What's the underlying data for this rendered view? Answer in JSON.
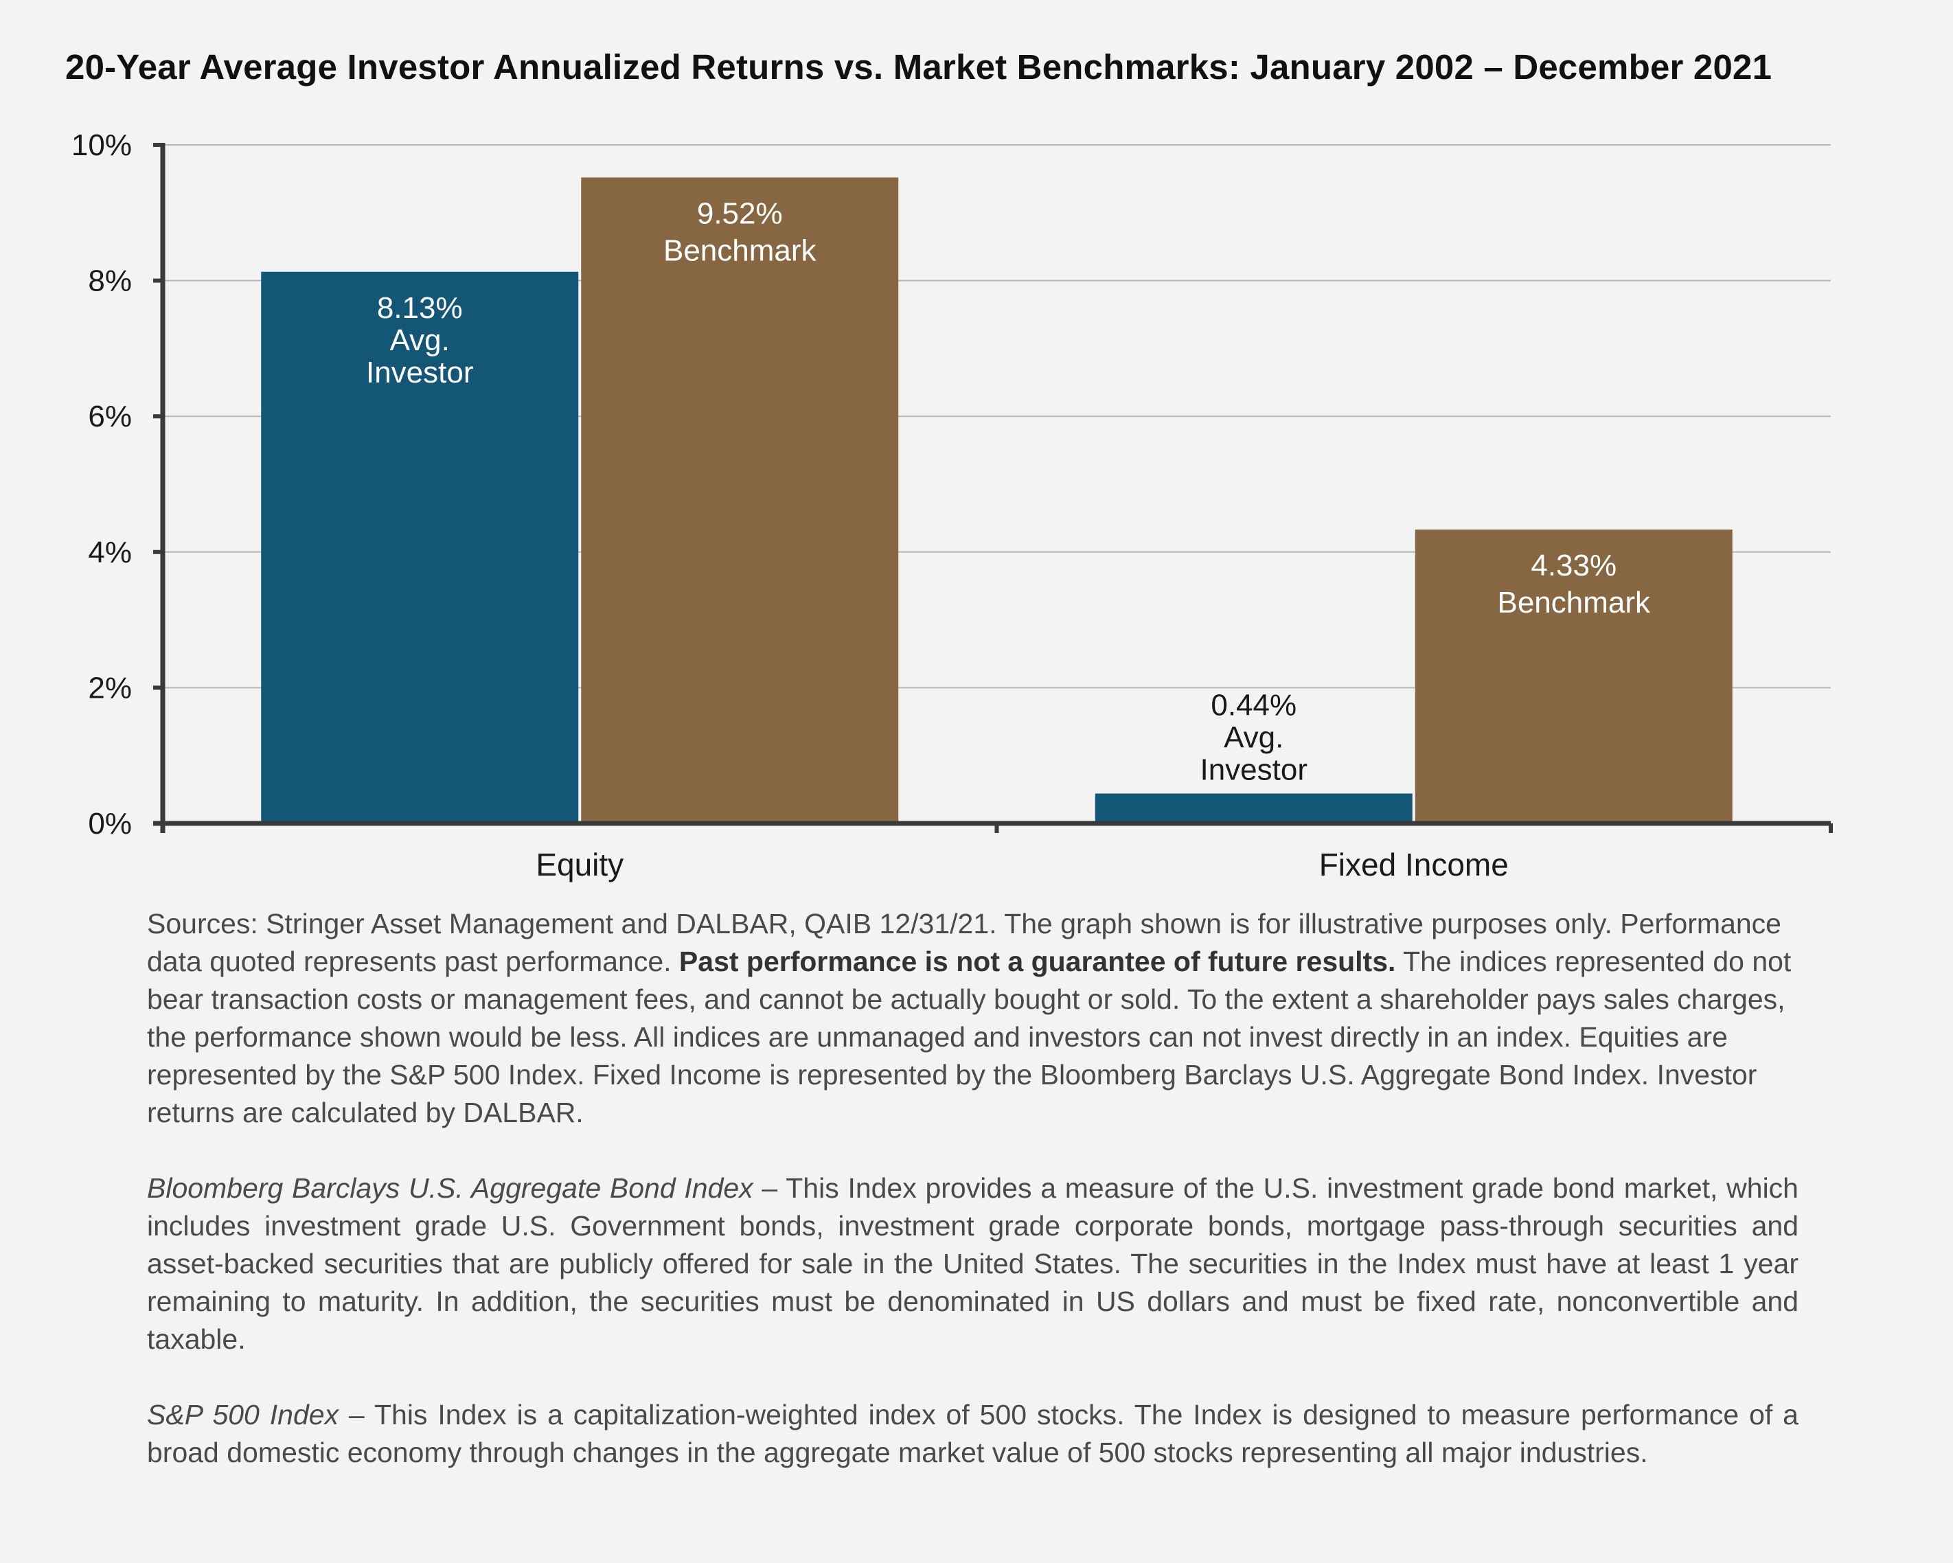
{
  "chart_data": {
    "type": "bar",
    "title": "20-Year Average Investor Annualized Returns vs. Market Benchmarks: January 2002 – December 2021",
    "categories": [
      "Equity",
      "Fixed Income"
    ],
    "series": [
      {
        "values": [
          8.13,
          0.44
        ],
        "labels": [
          "8.13%\nAvg.\nInvestor",
          "0.44%\nAvg.\nInvestor"
        ],
        "color": "#135676"
      },
      {
        "values": [
          9.52,
          4.33
        ],
        "labels": [
          "9.52%\nBenchmark",
          "4.33%\nBenchmark"
        ],
        "color": "#866741"
      }
    ],
    "yticks": [
      "0%",
      "2%",
      "4%",
      "6%",
      "8%",
      "10%"
    ],
    "ylim": [
      0,
      10
    ],
    "grid": true
  },
  "notes": {
    "p1": {
      "a": "Sources: Stringer Asset Management and DALBAR, QAIB 12/31/21. The graph shown is for illustrative purposes only. Performance data quoted represents past performance. ",
      "bold": "Past performance is not a guarantee of future results.",
      "b": " The indices represented do not bear transaction costs or management fees, and cannot be actually bought or sold. To the extent a shareholder pays sales charges, the performance shown would be less. All indices are unmanaged and investors can not invest directly in an index. Equities are represented by the S&P 500 Index. Fixed Income is represented by the Bloomberg Barclays U.S. Aggregate Bond Index. Investor returns are calculated by DALBAR."
    },
    "p2": {
      "term": "Bloomberg Barclays U.S. Aggregate Bond Index",
      "text": " – This Index provides a measure of the U.S. investment grade bond market, which includes investment grade U.S. Government bonds, investment grade corporate bonds, mortgage pass-through securities and asset-backed securities that are publicly offered for sale in the United States. The securities in the Index must have at least 1 year remaining to maturity. In addition, the securities must be denominated in US dollars and must be fixed rate, nonconvertible and taxable."
    },
    "p3": {
      "term": "S&P 500 Index",
      "text": " – This Index is a capitalization-weighted index of 500 stocks. The Index is designed to measure performance of a broad domestic economy through changes in the aggregate market value of 500 stocks representing all major industries."
    }
  }
}
